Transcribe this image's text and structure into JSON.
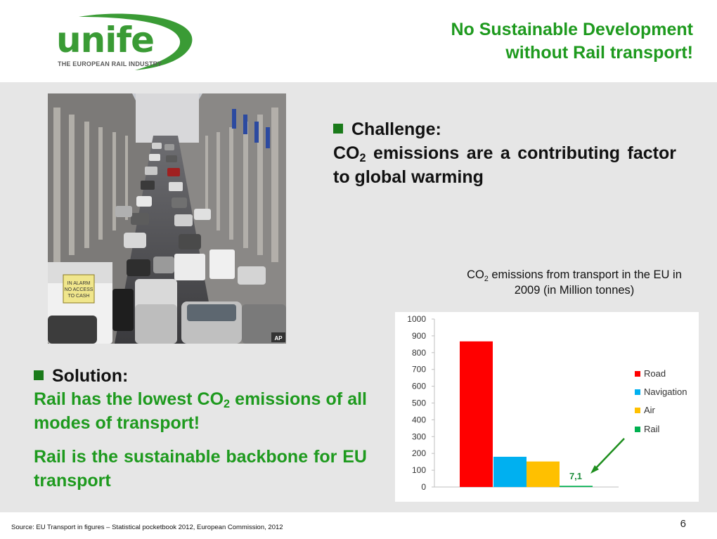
{
  "header": {
    "logo_text": "unife",
    "logo_tagline": "THE EUROPEAN RAIL INDUSTRY",
    "title_line1": "No Sustainable Development",
    "title_line2": "without Rail transport!"
  },
  "challenge": {
    "heading": "Challenge:",
    "body_pre": "CO",
    "body_sub": "2",
    "body_post": " emissions are a contributing factor to global warming"
  },
  "solution": {
    "heading": "Solution:",
    "p1_pre": "Rail has the lowest CO",
    "p1_sub": "2",
    "p1_post": " emissions of all modes of transport!",
    "p2": "Rail is the sustainable backbone for EU transport"
  },
  "photo": {
    "label": "IN ALARM NO ACCESS TO CASH",
    "credit": "AP"
  },
  "chart_caption": {
    "pre": "CO",
    "sub": "2",
    "post": " emissions from transport in the EU in 2009 (in Million tonnes)"
  },
  "chart_data": {
    "type": "bar",
    "categories": [
      "Road",
      "Navigation",
      "Air",
      "Rail"
    ],
    "values": [
      867,
      180,
      152,
      7.1
    ],
    "colors": [
      "#ff0000",
      "#00b0f0",
      "#ffc000",
      "#00b050"
    ],
    "ylim": [
      0,
      1000
    ],
    "yticks": [
      0,
      100,
      200,
      300,
      400,
      500,
      600,
      700,
      800,
      900,
      1000
    ],
    "annotation": "7,1",
    "legend_position": "right",
    "grid": false
  },
  "footer": {
    "source": "Source: EU Transport in figures – Statistical pocketbook 2012, European Commission, 2012",
    "page_number": "6"
  }
}
